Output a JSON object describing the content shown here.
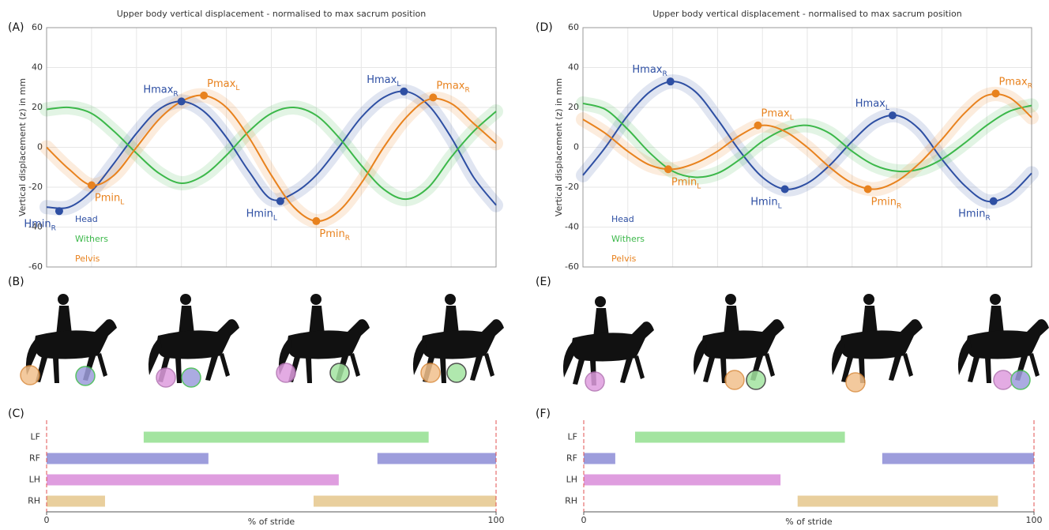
{
  "chart_data": [
    {
      "type": "line",
      "panel": "(A)",
      "title": "Upper body vertical displacement - normalised to max sacrum position",
      "ylabel": "Vertical displacement (z) in mm",
      "ylim": [
        -60,
        60
      ],
      "yticks": [
        -60,
        -40,
        -20,
        0,
        20,
        40,
        60
      ],
      "xlim": [
        0,
        100
      ],
      "xticks": [
        0,
        10,
        20,
        30,
        40,
        50,
        60,
        70,
        80,
        90,
        100
      ],
      "grid": true,
      "legend": "lower left",
      "x": [
        0,
        5,
        10,
        15,
        20,
        25,
        30,
        35,
        40,
        45,
        50,
        55,
        60,
        65,
        70,
        75,
        80,
        85,
        90,
        95,
        100
      ],
      "series": [
        {
          "name": "Head",
          "color": "#2e4fa3",
          "values": [
            -30,
            -30,
            -22,
            -8,
            7,
            19,
            23,
            18,
            5,
            -12,
            -26,
            -23,
            -14,
            0,
            15,
            25,
            28,
            21,
            5,
            -15,
            -29
          ]
        },
        {
          "name": "Withers",
          "color": "#3cb84a",
          "values": [
            19,
            20,
            17,
            8,
            -3,
            -13,
            -18,
            -14,
            -4,
            8,
            17,
            20,
            16,
            5,
            -9,
            -21,
            -26,
            -20,
            -5,
            8,
            18
          ]
        },
        {
          "name": "Pelvis",
          "color": "#e8821e",
          "values": [
            0,
            -11,
            -19,
            -14,
            0,
            14,
            23,
            26,
            20,
            5,
            -14,
            -30,
            -37,
            -32,
            -18,
            0,
            15,
            24,
            22,
            12,
            2
          ]
        }
      ],
      "annotations": [
        {
          "text": "Hmin",
          "sub": "R",
          "series": 0,
          "x": 2.8,
          "y": -32
        },
        {
          "text": "Hmax",
          "sub": "R",
          "series": 0,
          "x": 30,
          "y": 23
        },
        {
          "text": "Hmin",
          "sub": "L",
          "series": 0,
          "x": 52,
          "y": -27
        },
        {
          "text": "Hmax",
          "sub": "L",
          "series": 0,
          "x": 79.5,
          "y": 28
        },
        {
          "text": "Pmin",
          "sub": "L",
          "series": 2,
          "x": 10,
          "y": -19
        },
        {
          "text": "Pmax",
          "sub": "L",
          "series": 2,
          "x": 35,
          "y": 26
        },
        {
          "text": "Pmin",
          "sub": "R",
          "series": 2,
          "x": 60,
          "y": -37
        },
        {
          "text": "Pmax",
          "sub": "R",
          "series": 2,
          "x": 86,
          "y": 25
        }
      ]
    },
    {
      "type": "gantt",
      "panel": "(C)",
      "xlim": [
        0,
        100
      ],
      "xticks": [
        0,
        100
      ],
      "xlabel": "% of stride",
      "rows": [
        {
          "name": "LF",
          "color": "#a3e4a0",
          "segments": [
            [
              21.6,
              85
            ]
          ]
        },
        {
          "name": "RF",
          "color": "#9d9ddc",
          "segments": [
            [
              0,
              36
            ],
            [
              73.6,
              100
            ]
          ]
        },
        {
          "name": "LH",
          "color": "#df9ddf",
          "segments": [
            [
              0,
              65
            ]
          ]
        },
        {
          "name": "RH",
          "color": "#e9cf9d",
          "segments": [
            [
              0,
              13
            ],
            [
              59.4,
              100
            ]
          ]
        }
      ]
    },
    {
      "type": "line",
      "panel": "(D)",
      "title": "Upper body vertical displacement - normalised to max sacrum position",
      "ylabel": "Vertical displacement (z) in mm",
      "ylim": [
        -60,
        60
      ],
      "yticks": [
        -60,
        -40,
        -20,
        0,
        20,
        40,
        60
      ],
      "xlim": [
        0,
        100
      ],
      "xticks": [
        0,
        10,
        20,
        30,
        40,
        50,
        60,
        70,
        80,
        90,
        100
      ],
      "grid": true,
      "legend": "lower left",
      "x": [
        0,
        5,
        10,
        15,
        20,
        25,
        30,
        35,
        40,
        45,
        50,
        55,
        60,
        65,
        70,
        75,
        80,
        85,
        90,
        95,
        100
      ],
      "series": [
        {
          "name": "Head",
          "color": "#2e4fa3",
          "values": [
            -14,
            0,
            16,
            28,
            33,
            28,
            14,
            -2,
            -15,
            -21,
            -18,
            -9,
            3,
            13,
            16,
            9,
            -6,
            -19,
            -27,
            -24,
            -13
          ]
        },
        {
          "name": "Withers",
          "color": "#3cb84a",
          "values": [
            22,
            19,
            9,
            -3,
            -12,
            -15,
            -13,
            -6,
            3,
            9,
            11,
            7,
            -2,
            -9,
            -12,
            -11,
            -6,
            2,
            11,
            18,
            21
          ]
        },
        {
          "name": "Pelvis",
          "color": "#e8821e",
          "values": [
            14,
            7,
            -2,
            -9,
            -11,
            -8,
            -2,
            6,
            11,
            8,
            0,
            -10,
            -18,
            -21,
            -17,
            -8,
            4,
            17,
            26,
            25,
            15
          ]
        }
      ],
      "annotations": [
        {
          "text": "Hmax",
          "sub": "R",
          "series": 0,
          "x": 19.5,
          "y": 33
        },
        {
          "text": "Hmin",
          "sub": "L",
          "series": 0,
          "x": 45,
          "y": -21
        },
        {
          "text": "Hmax",
          "sub": "L",
          "series": 0,
          "x": 69,
          "y": 16
        },
        {
          "text": "Hmin",
          "sub": "R",
          "series": 0,
          "x": 91.5,
          "y": -27
        },
        {
          "text": "Pmin",
          "sub": "L",
          "series": 2,
          "x": 19,
          "y": -11
        },
        {
          "text": "Pmax",
          "sub": "L",
          "series": 2,
          "x": 39,
          "y": 11
        },
        {
          "text": "Pmin",
          "sub": "R",
          "series": 2,
          "x": 63.5,
          "y": -21
        },
        {
          "text": "Pmax",
          "sub": "R",
          "series": 2,
          "x": 92,
          "y": 27
        }
      ]
    },
    {
      "type": "gantt",
      "panel": "(F)",
      "xlim": [
        0,
        100
      ],
      "xticks": [
        0,
        100
      ],
      "xlabel": "% of stride",
      "rows": [
        {
          "name": "LF",
          "color": "#a3e4a0",
          "segments": [
            [
              11.4,
              58
            ]
          ]
        },
        {
          "name": "RF",
          "color": "#9d9ddc",
          "segments": [
            [
              0,
              7
            ],
            [
              66.3,
              100
            ]
          ]
        },
        {
          "name": "LH",
          "color": "#df9ddf",
          "segments": [
            [
              0,
              43.7
            ]
          ]
        },
        {
          "name": "RH",
          "color": "#e9cf9d",
          "segments": [
            [
              47.5,
              92
            ]
          ]
        }
      ]
    }
  ],
  "image_panels": [
    {
      "panel": "(B)"
    },
    {
      "panel": "(E)"
    }
  ]
}
